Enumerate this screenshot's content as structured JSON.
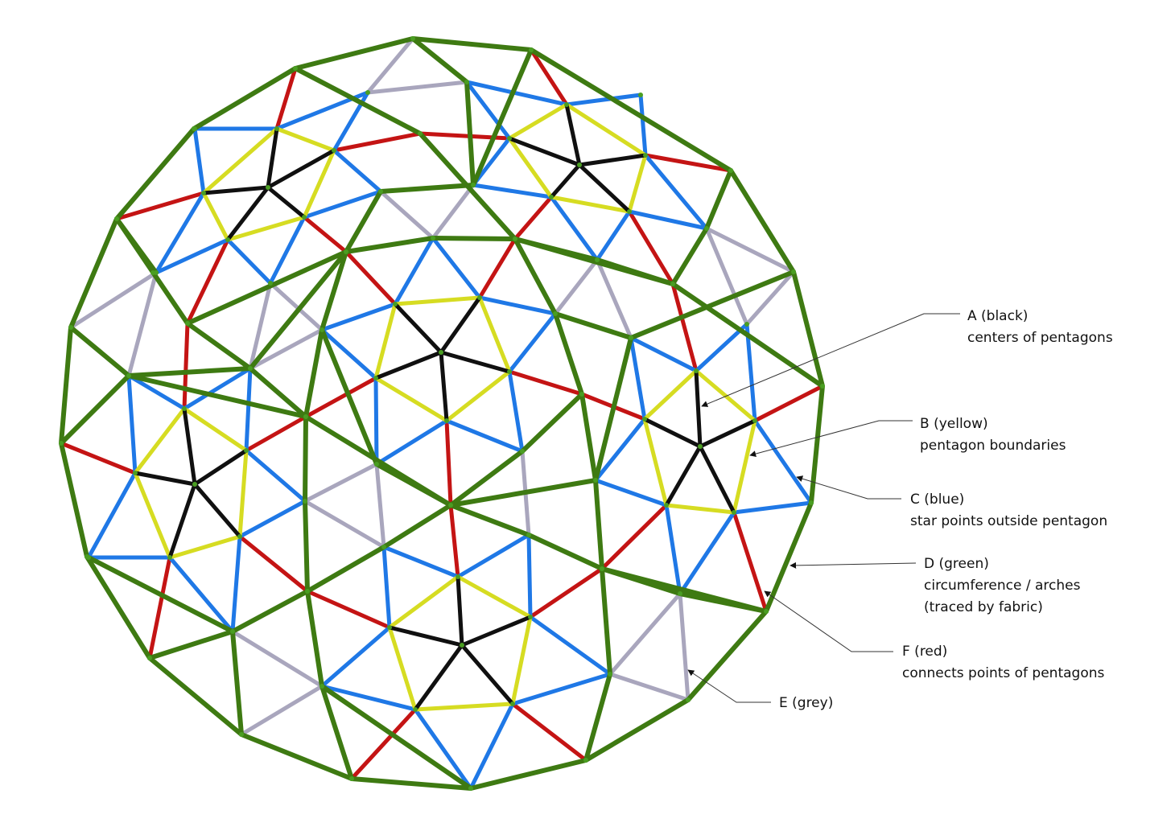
{
  "colors": {
    "black": "#101010",
    "yellow": "#d6dc22",
    "blue": "#1f78e6",
    "green": "#3e7a12",
    "red": "#c41414",
    "grey": "#a9a6bd",
    "node": "#4a9e22"
  },
  "legend": [
    {
      "key": "A",
      "color_name": "black",
      "title": "A (black)",
      "lines": [
        "centers of pentagons"
      ]
    },
    {
      "key": "B",
      "color_name": "yellow",
      "title": "B (yellow)",
      "lines": [
        "pentagon boundaries"
      ]
    },
    {
      "key": "C",
      "color_name": "blue",
      "title": "C (blue)",
      "lines": [
        "star points outside pentagon"
      ]
    },
    {
      "key": "D",
      "color_name": "green",
      "title": "D (green)",
      "lines": [
        "circumference / arches",
        "(traced by fabric)"
      ]
    },
    {
      "key": "F",
      "color_name": "red",
      "title": "F (red)",
      "lines": [
        "connects points of pentagons"
      ]
    },
    {
      "key": "E",
      "color_name": "grey",
      "title": "E (grey)",
      "lines": []
    }
  ]
}
